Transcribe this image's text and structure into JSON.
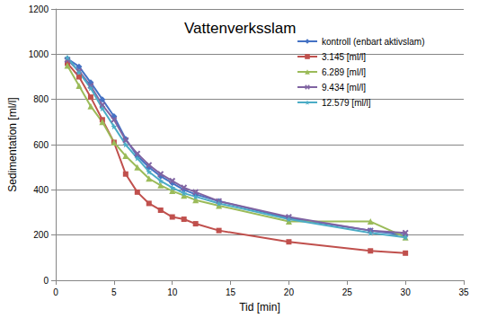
{
  "chart_data": {
    "type": "line",
    "title": "Vattenverksslam",
    "x_label": "Tid [min]",
    "y_label": "Sedimentation [ml/l]",
    "x": [
      1,
      2,
      3,
      4,
      5,
      6,
      7,
      8,
      9,
      10,
      11,
      12,
      14,
      20,
      27,
      30
    ],
    "series": [
      {
        "name": "kontroll (enbart aktivslam)",
        "color": "#4572c4",
        "marker": "diamond",
        "values": [
          980,
          945,
          875,
          800,
          725,
          625,
          550,
          500,
          460,
          430,
          400,
          380,
          350,
          275,
          220,
          200
        ]
      },
      {
        "name": "3.145 [ml/l]",
        "color": "#c0504d",
        "marker": "square",
        "values": [
          960,
          900,
          810,
          710,
          610,
          470,
          390,
          340,
          310,
          280,
          270,
          250,
          220,
          170,
          130,
          120
        ]
      },
      {
        "name": "6.289 [ml/l]",
        "color": "#9bbb59",
        "marker": "triangle",
        "values": [
          950,
          860,
          770,
          700,
          610,
          550,
          500,
          450,
          420,
          395,
          375,
          355,
          330,
          260,
          260,
          190
        ]
      },
      {
        "name": "9.434 [ml/l]",
        "color": "#8064a2",
        "marker": "x",
        "values": [
          975,
          925,
          860,
          775,
          710,
          620,
          560,
          510,
          470,
          440,
          410,
          390,
          350,
          280,
          220,
          210
        ]
      },
      {
        "name": "12.579 [ml/l]",
        "color": "#4bacc6",
        "marker": "star",
        "values": [
          985,
          920,
          850,
          760,
          680,
          600,
          540,
          480,
          440,
          410,
          385,
          370,
          340,
          270,
          210,
          190
        ]
      }
    ],
    "xlim": [
      0,
      35
    ],
    "xticks": [
      0,
      5,
      10,
      15,
      20,
      25,
      30,
      35
    ],
    "ylim": [
      0,
      1200
    ],
    "yticks": [
      0,
      200,
      400,
      600,
      800,
      1000,
      1200
    ],
    "grid": true,
    "legend": "upper right"
  }
}
